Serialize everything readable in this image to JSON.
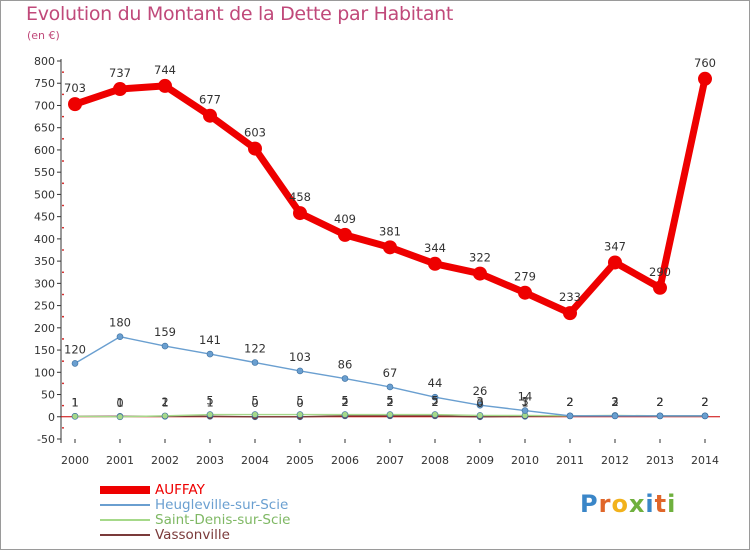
{
  "title": "Evolution du Montant de la Dette par Habitant",
  "subtitle": "(en €)",
  "logo": "Proxiti",
  "chart_data": {
    "type": "line",
    "title": "Evolution du Montant de la Dette par Habitant",
    "subtitle": "(en €)",
    "xlabel": "",
    "ylabel": "",
    "x": [
      "2000",
      "2001",
      "2002",
      "2003",
      "2004",
      "2005",
      "2006",
      "2007",
      "2008",
      "2009",
      "2010",
      "2011",
      "2012",
      "2013",
      "2014"
    ],
    "ylim": [
      -50,
      800
    ],
    "yticks": [
      -50,
      0,
      50,
      100,
      150,
      200,
      250,
      300,
      350,
      400,
      450,
      500,
      550,
      600,
      650,
      700,
      750,
      800
    ],
    "grid": false,
    "legend": "bottom-left",
    "series": [
      {
        "name": "AUFFAY",
        "color": "#ee0000",
        "values": [
          703,
          737,
          744,
          677,
          603,
          458,
          409,
          381,
          344,
          322,
          279,
          233,
          347,
          290,
          760
        ],
        "labels": [
          "703",
          "737",
          "744",
          "677",
          "603",
          "458",
          "409",
          "381",
          "344",
          "322",
          "279",
          "233",
          "347",
          "290",
          "760"
        ]
      },
      {
        "name": "Heugleville-sur-Scie",
        "color": "#6a9fd0",
        "values": [
          120,
          180,
          159,
          141,
          122,
          103,
          86,
          67,
          44,
          26,
          14,
          2,
          2,
          2,
          2
        ],
        "labels": [
          "120",
          "180",
          "159",
          "141",
          "122",
          "103",
          "86",
          "67",
          "44",
          "26",
          "14",
          "2",
          "2",
          "2",
          "2"
        ]
      },
      {
        "name": "Saint-Denis-sur-Scie",
        "color": "#a6d98a",
        "values": [
          1,
          0,
          2,
          5,
          5,
          5,
          5,
          5,
          5,
          3,
          3,
          2,
          3,
          2,
          2
        ],
        "labels": [
          "1",
          "0",
          "2",
          "5",
          "5",
          "5",
          "5",
          "5",
          "5",
          "3",
          "3",
          "2",
          "3",
          "2",
          "2"
        ]
      },
      {
        "name": "Vassonville",
        "color": "#7a3a3a",
        "values": [
          1,
          1,
          1,
          1,
          0,
          0,
          2,
          2,
          2,
          0,
          1,
          2,
          2,
          2,
          2
        ],
        "labels": [
          "1",
          "1",
          "1",
          "1",
          "0",
          "0",
          "2",
          "2",
          "2",
          "0",
          "1",
          "2",
          "2",
          "2",
          "2"
        ]
      }
    ]
  }
}
